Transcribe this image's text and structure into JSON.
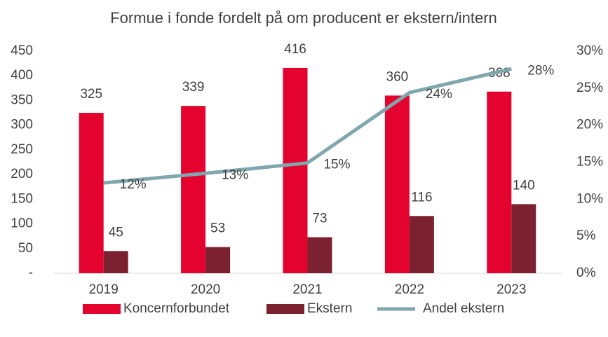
{
  "chart_data": {
    "type": "bar_line",
    "title": "Formue i fonde fordelt på om producent er ekstern/intern",
    "categories": [
      "2019",
      "2020",
      "2021",
      "2022",
      "2023"
    ],
    "series": [
      {
        "name": "Koncernforbundet",
        "color": "#e4032e",
        "type": "bar",
        "values": [
          325,
          339,
          416,
          360,
          368
        ]
      },
      {
        "name": "Ekstern",
        "color": "#7b2130",
        "type": "bar",
        "values": [
          45,
          53,
          73,
          116,
          140
        ]
      },
      {
        "name": "Andel ekstern",
        "color": "#7fa7ad",
        "type": "line",
        "axis": "y2",
        "values": [
          12.2,
          13.5,
          14.9,
          24.4,
          27.6
        ],
        "value_labels": [
          "12%",
          "13%",
          "15%",
          "24%",
          "28%"
        ]
      }
    ],
    "ylim": [
      0,
      450
    ],
    "yticks": [
      {
        "value": 0,
        "label": "-"
      },
      50,
      100,
      150,
      200,
      250,
      300,
      350,
      400,
      450
    ],
    "y2lim": [
      0,
      30
    ],
    "y2ticks": [
      {
        "value": 0,
        "label": "0%"
      },
      {
        "value": 5,
        "label": "5%"
      },
      {
        "value": 10,
        "label": "10%"
      },
      {
        "value": 15,
        "label": "15%"
      },
      {
        "value": 20,
        "label": "20%"
      },
      {
        "value": 25,
        "label": "25%"
      },
      {
        "value": 30,
        "label": "30%"
      }
    ],
    "grid": false
  }
}
